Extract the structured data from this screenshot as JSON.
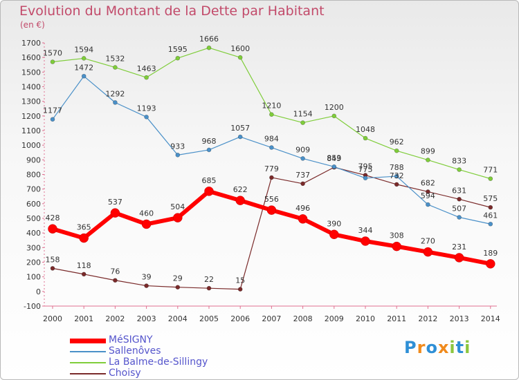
{
  "header": {
    "title": "Evolution du Montant de la Dette par Habitant",
    "subtitle": "(en €)"
  },
  "brand": {
    "letters": [
      "P",
      "r",
      "o",
      "x",
      "i",
      "t",
      "i"
    ],
    "colors": [
      "#2e8fd6",
      "#f08a1c",
      "#2e8fd6",
      "#f08a1c",
      "#8cc63f",
      "#2e8fd6",
      "#8cc63f"
    ]
  },
  "chart_data": {
    "type": "line",
    "title": "Evolution du Montant de la Dette par Habitant",
    "ylabel": "(en €)",
    "x": [
      "2000",
      "2001",
      "2002",
      "2003",
      "2004",
      "2005",
      "2006",
      "2007",
      "2008",
      "2009",
      "2010",
      "2011",
      "2012",
      "2013",
      "2014"
    ],
    "ylim": [
      -100,
      1700
    ],
    "yticks": [
      -100,
      0,
      100,
      200,
      300,
      400,
      500,
      600,
      700,
      800,
      900,
      1000,
      1100,
      1200,
      1300,
      1400,
      1500,
      1600,
      1700
    ],
    "legend_position": "bottom-left",
    "series": [
      {
        "name": "MéSIGNY",
        "color": "#ff0000",
        "values": [
          428,
          365,
          537,
          460,
          504,
          685,
          622,
          556,
          496,
          390,
          344,
          308,
          270,
          231,
          189
        ]
      },
      {
        "name": "Sallenôves",
        "color": "#4a90c8",
        "values": [
          1177,
          1472,
          1292,
          1193,
          933,
          968,
          1057,
          984,
          909,
          853,
          775,
          788,
          594,
          507,
          461
        ]
      },
      {
        "name": "La Balme-de-Sillingy",
        "color": "#7fcd3a",
        "values": [
          1570,
          1594,
          1532,
          1463,
          1595,
          1666,
          1600,
          1210,
          1154,
          1200,
          1048,
          962,
          899,
          833,
          771
        ]
      },
      {
        "name": "Choisy",
        "color": "#7a2a2a",
        "values": [
          158,
          118,
          76,
          39,
          29,
          22,
          15,
          779,
          737,
          849,
          795,
          732,
          682,
          631,
          575
        ]
      }
    ],
    "grid": false
  }
}
